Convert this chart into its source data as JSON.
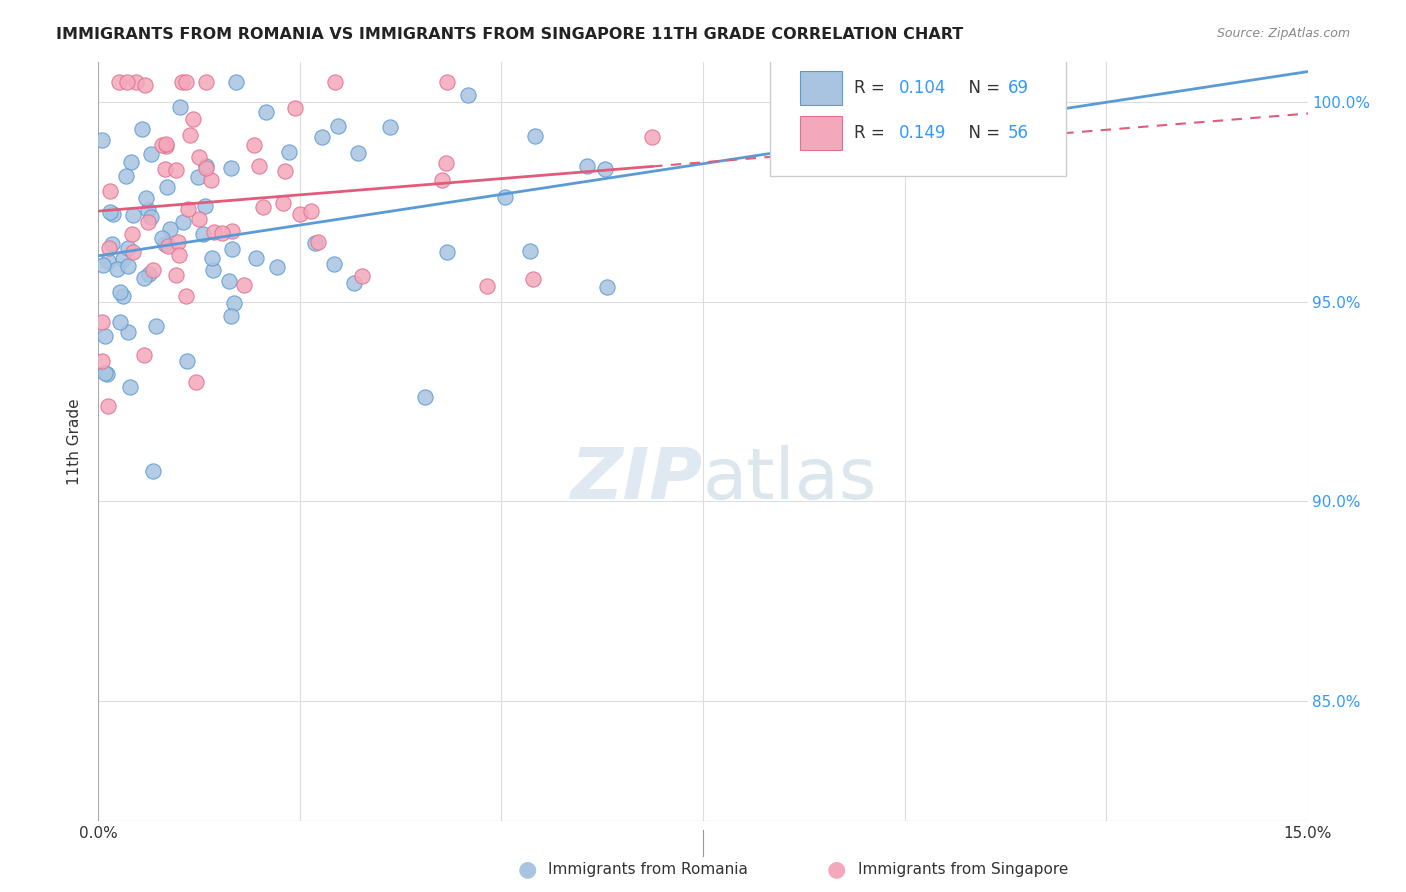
{
  "title": "IMMIGRANTS FROM ROMANIA VS IMMIGRANTS FROM SINGAPORE 11TH GRADE CORRELATION CHART",
  "source": "Source: ZipAtlas.com",
  "ylabel": "11th Grade",
  "ylabel_ticks": [
    "100.0%",
    "95.0%",
    "90.0%",
    "85.0%"
  ],
  "ylabel_tick_vals": [
    1.0,
    0.95,
    0.9,
    0.85
  ],
  "xlim": [
    0.0,
    0.15
  ],
  "ylim": [
    0.82,
    1.01
  ],
  "color_romania": "#a8c4e0",
  "color_singapore": "#f4a8bb",
  "color_line_romania": "#5b9bd5",
  "color_line_singapore": "#e05c7a",
  "watermark_zip": "ZIP",
  "watermark_atlas": "atlas",
  "background_color": "#ffffff",
  "grid_color": "#dddddd"
}
